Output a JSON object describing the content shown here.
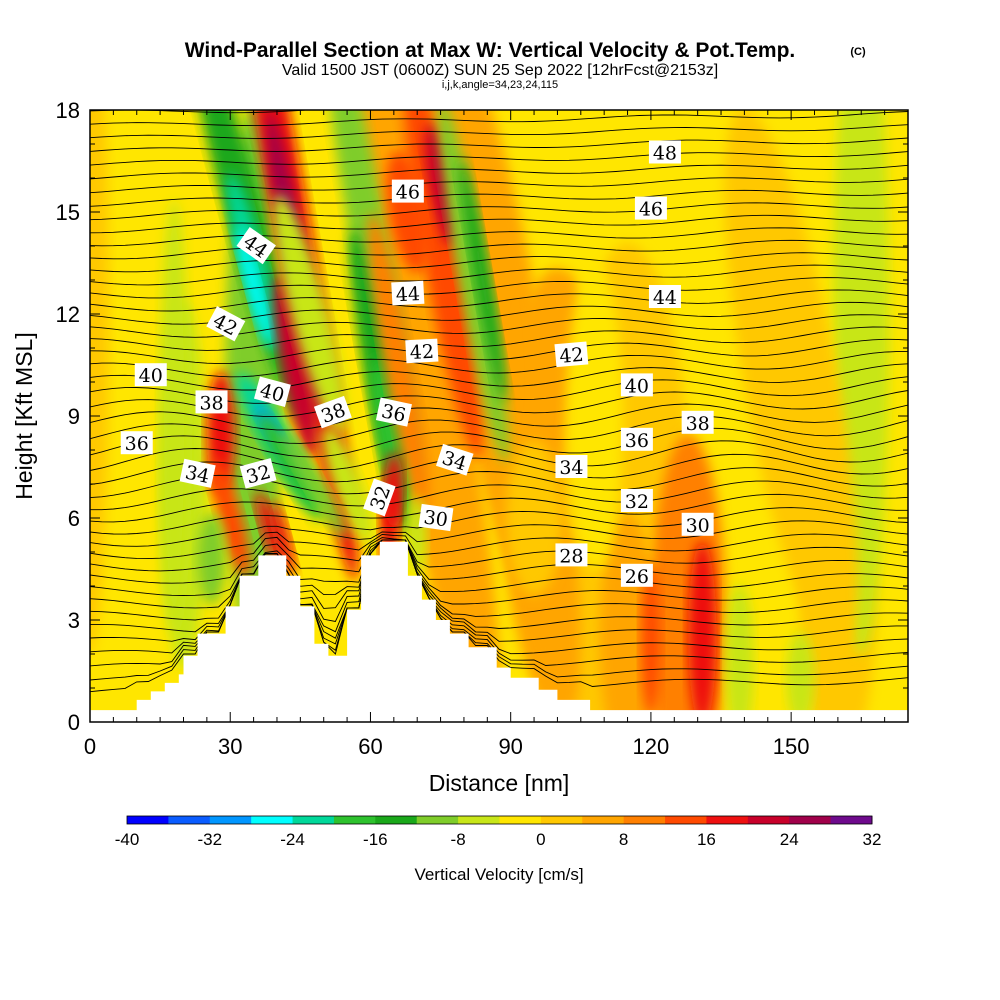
{
  "header": {
    "title": "Wind-Parallel Section at Max W: Vertical Velocity & Pot.Temp.",
    "copyright": "(C)",
    "valid_line": "Valid 1500 JST (0600Z) SUN 25 Sep 2022 [12hrFcst@2153z]",
    "index_line": "i,j,k,angle=34,23,24,115"
  },
  "chart_data": {
    "type": "heatmap",
    "title": "Wind-Parallel Section at Max W: Vertical Velocity & Pot.Temp.",
    "xlabel": "Distance [nm]",
    "ylabel": "Height [Kft MSL]",
    "xlim": [
      0,
      175
    ],
    "ylim": [
      0,
      18
    ],
    "x_ticks": [
      0,
      30,
      60,
      90,
      120,
      150
    ],
    "y_ticks": [
      0,
      3,
      6,
      9,
      12,
      15,
      18
    ],
    "colorbar": {
      "label": "Vertical Velocity [cm/s]",
      "ticks": [
        -40,
        -32,
        -24,
        -16,
        -8,
        0,
        8,
        16,
        24,
        32
      ],
      "levels": [
        -40,
        -36,
        -32,
        -28,
        -24,
        -20,
        -16,
        -12,
        -8,
        -4,
        0,
        4,
        8,
        12,
        16,
        20,
        24,
        28,
        32
      ],
      "colors": [
        "#0000ff",
        "#0a5cff",
        "#0096ff",
        "#00ffff",
        "#00d89a",
        "#2ec22e",
        "#1aa81a",
        "#7fcd2a",
        "#c8e619",
        "#ffe600",
        "#ffc800",
        "#ffa500",
        "#ff8000",
        "#ff4a00",
        "#ee1010",
        "#c8002a",
        "#a0004a",
        "#6e0a8c"
      ]
    },
    "terrain_kft": [
      [
        0,
        0.35
      ],
      [
        10,
        0.35
      ],
      [
        10,
        0.65
      ],
      [
        13,
        0.65
      ],
      [
        13,
        0.9
      ],
      [
        16,
        0.9
      ],
      [
        16,
        1.15
      ],
      [
        19,
        1.15
      ],
      [
        19,
        1.4
      ],
      [
        20,
        1.4
      ],
      [
        20,
        1.95
      ],
      [
        23,
        1.95
      ],
      [
        23,
        2.6
      ],
      [
        29,
        2.6
      ],
      [
        29,
        3.4
      ],
      [
        32,
        3.4
      ],
      [
        32,
        4.3
      ],
      [
        36,
        4.3
      ],
      [
        36,
        4.9
      ],
      [
        42,
        4.9
      ],
      [
        42,
        4.3
      ],
      [
        45,
        4.3
      ],
      [
        45,
        3.4
      ],
      [
        48,
        3.4
      ],
      [
        48,
        2.3
      ],
      [
        51,
        2.3
      ],
      [
        51,
        1.95
      ],
      [
        55,
        1.95
      ],
      [
        55,
        3.3
      ],
      [
        58,
        3.3
      ],
      [
        58,
        4.9
      ],
      [
        62,
        4.9
      ],
      [
        62,
        5.3
      ],
      [
        68,
        5.3
      ],
      [
        68,
        4.3
      ],
      [
        71,
        4.3
      ],
      [
        71,
        3.6
      ],
      [
        74,
        3.6
      ],
      [
        74,
        3.0
      ],
      [
        77,
        3.0
      ],
      [
        77,
        2.6
      ],
      [
        81,
        2.6
      ],
      [
        81,
        2.2
      ],
      [
        87,
        2.2
      ],
      [
        87,
        1.6
      ],
      [
        90,
        1.6
      ],
      [
        90,
        1.3
      ],
      [
        96,
        1.3
      ],
      [
        96,
        0.95
      ],
      [
        100,
        0.95
      ],
      [
        100,
        0.65
      ],
      [
        107,
        0.65
      ],
      [
        107,
        0.35
      ],
      [
        175,
        0.35
      ]
    ],
    "isentrope_labels": [
      {
        "text": "48",
        "x": 123,
        "y": 16.75,
        "rot": 0
      },
      {
        "text": "46",
        "x": 68,
        "y": 15.6,
        "rot": 0
      },
      {
        "text": "46",
        "x": 120,
        "y": 15.1,
        "rot": 0
      },
      {
        "text": "44",
        "x": 35.5,
        "y": 14.0,
        "rot": 35
      },
      {
        "text": "44",
        "x": 68,
        "y": 12.6,
        "rot": -3
      },
      {
        "text": "44",
        "x": 123,
        "y": 12.5,
        "rot": 0
      },
      {
        "text": "42",
        "x": 29,
        "y": 11.7,
        "rot": 28
      },
      {
        "text": "42",
        "x": 71,
        "y": 10.9,
        "rot": -3
      },
      {
        "text": "42",
        "x": 103,
        "y": 10.8,
        "rot": -5
      },
      {
        "text": "40",
        "x": 13,
        "y": 10.2,
        "rot": 0
      },
      {
        "text": "40",
        "x": 117,
        "y": 9.9,
        "rot": 0
      },
      {
        "text": "40",
        "x": 39,
        "y": 9.7,
        "rot": 15
      },
      {
        "text": "38",
        "x": 26,
        "y": 9.4,
        "rot": 0
      },
      {
        "text": "38",
        "x": 52,
        "y": 9.1,
        "rot": -20
      },
      {
        "text": "36",
        "x": 65,
        "y": 9.1,
        "rot": 12
      },
      {
        "text": "38",
        "x": 130,
        "y": 8.8,
        "rot": 0
      },
      {
        "text": "36",
        "x": 10,
        "y": 8.2,
        "rot": 0
      },
      {
        "text": "36",
        "x": 117,
        "y": 8.3,
        "rot": 0
      },
      {
        "text": "34",
        "x": 78,
        "y": 7.7,
        "rot": 18
      },
      {
        "text": "34",
        "x": 103,
        "y": 7.5,
        "rot": 0
      },
      {
        "text": "34",
        "x": 23,
        "y": 7.3,
        "rot": 12
      },
      {
        "text": "32",
        "x": 36,
        "y": 7.3,
        "rot": -15
      },
      {
        "text": "32",
        "x": 62,
        "y": 6.6,
        "rot": -70
      },
      {
        "text": "32",
        "x": 117,
        "y": 6.5,
        "rot": 0
      },
      {
        "text": "30",
        "x": 74,
        "y": 6.0,
        "rot": 8
      },
      {
        "text": "30",
        "x": 130,
        "y": 5.8,
        "rot": 0
      },
      {
        "text": "28",
        "x": 103,
        "y": 4.9,
        "rot": 0
      },
      {
        "text": "26",
        "x": 117,
        "y": 4.3,
        "rot": 0
      }
    ]
  }
}
